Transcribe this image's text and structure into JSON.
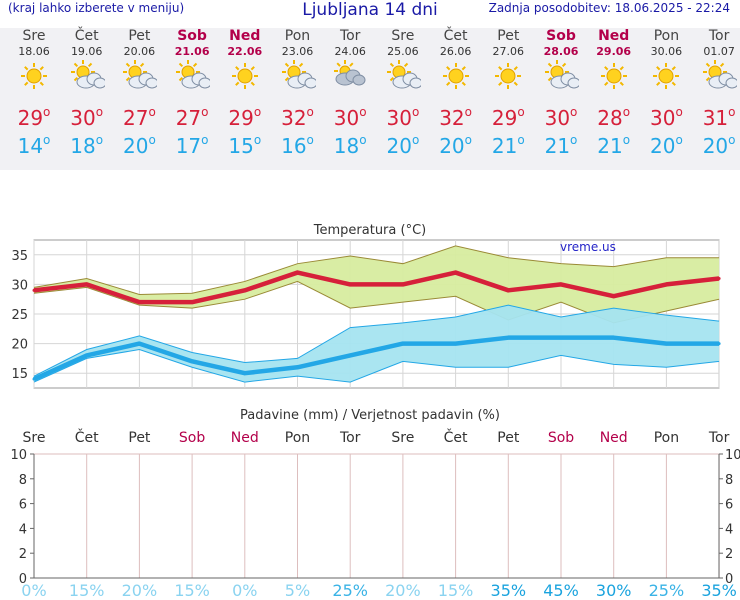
{
  "header": {
    "menu_hint": "(kraj lahko izberete v meniju)",
    "title": "Ljubljana 14 dni",
    "updated": "Zadnja posodobitev: 18.06.2025 - 22:24"
  },
  "days": [
    {
      "name": "Sre",
      "date": "18.06",
      "weekend": false,
      "icon": "sun-icon",
      "tmax": "29",
      "tmin": "14"
    },
    {
      "name": "Čet",
      "date": "19.06",
      "weekend": false,
      "icon": "sun-cloud-icon",
      "tmax": "30",
      "tmin": "18"
    },
    {
      "name": "Pet",
      "date": "20.06",
      "weekend": false,
      "icon": "sun-cloud-icon",
      "tmax": "27",
      "tmin": "20"
    },
    {
      "name": "Sob",
      "date": "21.06",
      "weekend": true,
      "icon": "sun-cloud-icon",
      "tmax": "27",
      "tmin": "17"
    },
    {
      "name": "Ned",
      "date": "22.06",
      "weekend": true,
      "icon": "sun-icon",
      "tmax": "29",
      "tmin": "15"
    },
    {
      "name": "Pon",
      "date": "23.06",
      "weekend": false,
      "icon": "sun-cloud-icon",
      "tmax": "32",
      "tmin": "16"
    },
    {
      "name": "Tor",
      "date": "24.06",
      "weekend": false,
      "icon": "cloud-sun-icon",
      "tmax": "30",
      "tmin": "18"
    },
    {
      "name": "Sre",
      "date": "25.06",
      "weekend": false,
      "icon": "sun-cloud-icon",
      "tmax": "30",
      "tmin": "20"
    },
    {
      "name": "Čet",
      "date": "26.06",
      "weekend": false,
      "icon": "sun-icon",
      "tmax": "32",
      "tmin": "20"
    },
    {
      "name": "Pet",
      "date": "27.06",
      "weekend": false,
      "icon": "sun-icon",
      "tmax": "29",
      "tmin": "21"
    },
    {
      "name": "Sob",
      "date": "28.06",
      "weekend": true,
      "icon": "sun-cloud-icon",
      "tmax": "30",
      "tmin": "21"
    },
    {
      "name": "Ned",
      "date": "29.06",
      "weekend": true,
      "icon": "sun-icon",
      "tmax": "28",
      "tmin": "21"
    },
    {
      "name": "Pon",
      "date": "30.06",
      "weekend": false,
      "icon": "sun-icon",
      "tmax": "30",
      "tmin": "20"
    },
    {
      "name": "Tor",
      "date": "01.07",
      "weekend": false,
      "icon": "sun-cloud-icon",
      "tmax": "31",
      "tmin": "20"
    }
  ],
  "colors": {
    "max": "#d6203a",
    "min": "#23a7e6",
    "weekend": "#b3004a",
    "band_max": "#d7ec9f",
    "band_min": "#a5e4f0"
  },
  "chart_data": [
    {
      "type": "line",
      "title": "Temperatura (°C)",
      "watermark": "vreme.us",
      "ylim": [
        12.5,
        37.5
      ],
      "yticks": [
        15,
        20,
        25,
        30,
        35
      ],
      "series": [
        {
          "values": [
            29,
            30,
            27,
            27,
            29,
            32,
            30,
            30,
            32,
            29,
            30,
            28,
            30,
            31
          ],
          "low": [
            28.5,
            29.5,
            26.5,
            26,
            27.5,
            30.5,
            26,
            27,
            28,
            24,
            27,
            23.5,
            25.5,
            27.5
          ],
          "high": [
            29.5,
            31,
            28.3,
            28.5,
            30.5,
            33.5,
            34.8,
            33.5,
            36.5,
            34.5,
            33.5,
            33,
            34.5,
            34.5
          ]
        },
        {
          "values": [
            14,
            18,
            20,
            17,
            15,
            16,
            18,
            20,
            20,
            21,
            21,
            21,
            20,
            20
          ],
          "low": [
            13.5,
            17.5,
            19,
            16,
            13.5,
            14.5,
            13.5,
            17,
            16,
            16,
            18,
            16.5,
            16,
            17
          ],
          "high": [
            14.5,
            19,
            21.3,
            18.5,
            16.8,
            17.5,
            22.7,
            23.5,
            24.5,
            26.5,
            24.5,
            26,
            24.8,
            23.8
          ]
        }
      ]
    },
    {
      "type": "bar",
      "title": "Padavine (mm) / Verjetnost padavin (%)",
      "categories": [
        "Sre",
        "Čet",
        "Pet",
        "Sob",
        "Ned",
        "Pon",
        "Tor",
        "Sre",
        "Čet",
        "Pet",
        "Sob",
        "Ned",
        "Pon",
        "Tor"
      ],
      "weekend": [
        false,
        false,
        false,
        true,
        true,
        false,
        false,
        false,
        false,
        false,
        true,
        true,
        false,
        false
      ],
      "values": [
        0,
        0,
        0,
        0,
        0,
        0,
        0,
        0,
        0,
        0,
        0,
        0,
        0,
        0
      ],
      "probabilities": [
        "0%",
        "15%",
        "20%",
        "15%",
        "0%",
        "5%",
        "25%",
        "20%",
        "15%",
        "35%",
        "45%",
        "30%",
        "25%",
        "35%"
      ],
      "prob_values": [
        0,
        15,
        20,
        15,
        0,
        5,
        25,
        20,
        15,
        35,
        45,
        30,
        25,
        35
      ],
      "ylim": [
        0,
        10
      ],
      "yticks": [
        0,
        2,
        4,
        6,
        8,
        10
      ]
    }
  ]
}
